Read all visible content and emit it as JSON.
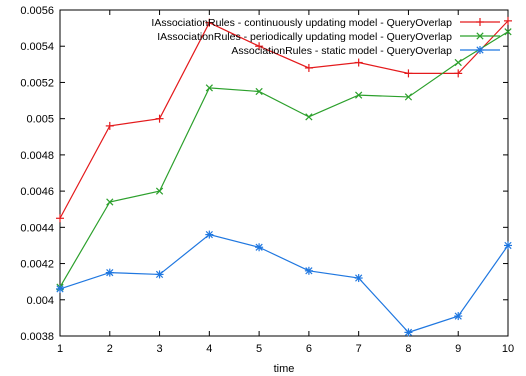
{
  "chart_data": {
    "type": "line",
    "title": "",
    "xlabel": "time",
    "ylabel": "",
    "x": [
      1,
      2,
      3,
      4,
      5,
      6,
      7,
      8,
      9,
      10
    ],
    "xlim": [
      1,
      10
    ],
    "ylim": [
      0.0038,
      0.0056
    ],
    "x_ticks": [
      "1",
      "2",
      "3",
      "4",
      "5",
      "6",
      "7",
      "8",
      "9",
      "10"
    ],
    "y_ticks": [
      0.0038,
      0.004,
      0.0042,
      0.0044,
      0.0046,
      0.0048,
      0.005,
      0.0052,
      0.0054,
      0.0056
    ],
    "y_tick_labels": [
      "0.0038",
      "0.004",
      "0.0042",
      "0.0044",
      "0.0046",
      "0.0048",
      "0.005",
      "0.0052",
      "0.0054",
      "0.0056"
    ],
    "grid": false,
    "legend_position": "top-right",
    "series": [
      {
        "name": "IAssociationRules  -  continuously updating model  -  QueryOverlap",
        "color": "#e41a1c",
        "marker": "plus",
        "values": [
          0.00445,
          0.00496,
          0.005,
          0.00553,
          0.0054,
          0.00528,
          0.00531,
          0.00525,
          0.00525,
          0.00554
        ]
      },
      {
        "name": "IAssociationRules  -  periodically updating model  -  QueryOverlap",
        "color": "#2ca02c",
        "marker": "cross",
        "values": [
          0.00407,
          0.00454,
          0.0046,
          0.00517,
          0.00515,
          0.00501,
          0.00513,
          0.00512,
          0.00531,
          0.00548
        ]
      },
      {
        "name": "AssociationRules  -  static model  -  QueryOverlap",
        "color": "#1f77e0",
        "marker": "asterisk",
        "values": [
          0.00406,
          0.00415,
          0.00414,
          0.00436,
          0.00429,
          0.00416,
          0.00412,
          0.00382,
          0.00391,
          0.0043
        ]
      }
    ]
  }
}
